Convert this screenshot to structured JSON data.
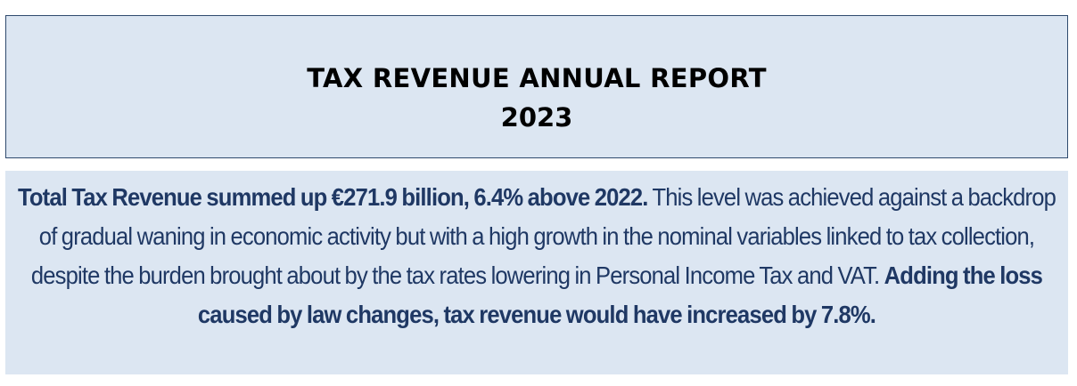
{
  "header": {
    "title": "TAX REVENUE ANNUAL REPORT",
    "year": "2023"
  },
  "summary": {
    "bold_lead": "Total Tax Revenue summed up €271.9 billion, 6.4% above 2022.",
    "body": " This level was achieved against a backdrop of gradual waning in economic activity but with a high growth in the nominal variables linked to tax collection, despite the burden brought about by the tax rates lowering in Personal Income Tax and VAT. ",
    "bold_tail": "Adding the loss caused by law changes, tax revenue would have increased by 7.8%."
  },
  "colors": {
    "box_background": "#dce6f2",
    "text_primary": "#1f3864",
    "border": "#2f4a6e"
  }
}
